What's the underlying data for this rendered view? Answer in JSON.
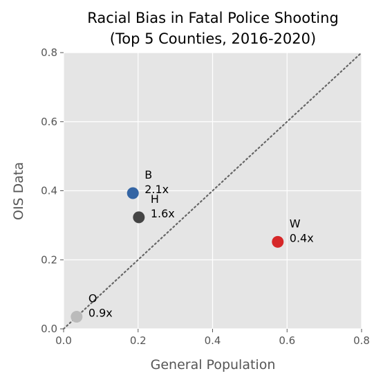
{
  "chart_data": {
    "type": "scatter",
    "title": [
      "Racial Bias in Fatal Police Shooting",
      "(Top 5 Counties, 2016-2020)"
    ],
    "xlabel": "General Population",
    "ylabel": "OIS Data",
    "xlim": [
      0,
      0.8
    ],
    "ylim": [
      0,
      0.8
    ],
    "xticks": [
      "0.0",
      "0.2",
      "0.4",
      "0.6",
      "0.8"
    ],
    "yticks": [
      "0.0",
      "0.2",
      "0.4",
      "0.6",
      "0.8"
    ],
    "grid": true,
    "background_color": "#e5e5e5",
    "reference_line": {
      "style": "dotted",
      "color": "#666666",
      "from": [
        0,
        0
      ],
      "to": [
        0.8,
        0.8
      ]
    },
    "points": [
      {
        "label": "B",
        "ratio": "2.1x",
        "x": 0.186,
        "y": 0.393,
        "color": "#3465a4"
      },
      {
        "label": "H",
        "ratio": "1.6x",
        "x": 0.202,
        "y": 0.323,
        "color": "#444444"
      },
      {
        "label": "W",
        "ratio": "0.4x",
        "x": 0.575,
        "y": 0.252,
        "color": "#d62728"
      },
      {
        "label": "O",
        "ratio": "0.9x",
        "x": 0.035,
        "y": 0.035,
        "color": "#bbbbbb"
      }
    ]
  }
}
